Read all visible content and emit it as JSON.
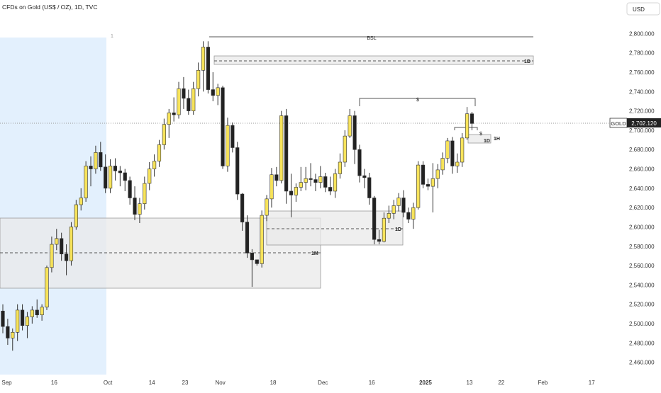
{
  "header": {
    "title": "CFDs on Gold (US$ / OZ), 1D, TVC",
    "currency_button": "USD"
  },
  "price_label": {
    "symbol": "GOLD",
    "value": "2,702.120"
  },
  "colors": {
    "bull": "#f7e35a",
    "bear": "#222222",
    "wick": "#333333",
    "grid_text": "#333333",
    "highlight": "#e3f0fd",
    "zone": "#e9e9e9"
  },
  "chart_data": {
    "type": "candlestick",
    "title": "CFDs on Gold (US$ / OZ), 1D, TVC",
    "ylim": [
      2448,
      2812
    ],
    "y_ticks": [
      "2,800.000",
      "2,780.000",
      "2,760.000",
      "2,740.000",
      "2,720.000",
      "2,700.000",
      "2,680.000",
      "2,660.000",
      "2,640.000",
      "2,620.000",
      "2,600.000",
      "2,580.000",
      "2,560.000",
      "2,540.000",
      "2,520.000",
      "2,500.000",
      "2,480.000",
      "2,460.000"
    ],
    "x_ticks": [
      {
        "label": "Sep",
        "bar": 0.8,
        "bold": false
      },
      {
        "label": "16",
        "bar": 10.5,
        "bold": false
      },
      {
        "label": "Oct",
        "bar": 21.5,
        "bold": false
      },
      {
        "label": "14",
        "bar": 30.5,
        "bold": false
      },
      {
        "label": "23",
        "bar": 37.3,
        "bold": false
      },
      {
        "label": "Nov",
        "bar": 44.5,
        "bold": false
      },
      {
        "label": "18",
        "bar": 55.3,
        "bold": false
      },
      {
        "label": "Dec",
        "bar": 65.5,
        "bold": false
      },
      {
        "label": "16",
        "bar": 75.5,
        "bold": false
      },
      {
        "label": "2025",
        "bar": 86.5,
        "bold": true
      },
      {
        "label": "13",
        "bar": 95.5,
        "bold": false
      },
      {
        "label": "22",
        "bar": 102,
        "bold": false
      },
      {
        "label": "Feb",
        "bar": 110.5,
        "bold": false
      },
      {
        "label": "17",
        "bar": 120.5,
        "bold": false
      }
    ],
    "candles": [
      [
        2513,
        2520,
        2490,
        2497
      ],
      [
        2497,
        2505,
        2478,
        2485
      ],
      [
        2485,
        2495,
        2472,
        2491
      ],
      [
        2491,
        2520,
        2482,
        2514
      ],
      [
        2514,
        2520,
        2493,
        2498
      ],
      [
        2498,
        2512,
        2485,
        2507
      ],
      [
        2507,
        2518,
        2500,
        2514
      ],
      [
        2514,
        2525,
        2506,
        2509
      ],
      [
        2509,
        2520,
        2503,
        2517
      ],
      [
        2517,
        2560,
        2514,
        2558
      ],
      [
        2558,
        2590,
        2553,
        2582
      ],
      [
        2582,
        2598,
        2576,
        2588
      ],
      [
        2588,
        2594,
        2565,
        2572
      ],
      [
        2572,
        2582,
        2550,
        2565
      ],
      [
        2565,
        2605,
        2560,
        2600
      ],
      [
        2600,
        2628,
        2597,
        2623
      ],
      [
        2623,
        2640,
        2617,
        2630
      ],
      [
        2630,
        2668,
        2626,
        2663
      ],
      [
        2663,
        2673,
        2642,
        2660
      ],
      [
        2660,
        2684,
        2655,
        2677
      ],
      [
        2677,
        2688,
        2658,
        2662
      ],
      [
        2662,
        2675,
        2635,
        2640
      ],
      [
        2640,
        2670,
        2635,
        2663
      ],
      [
        2663,
        2671,
        2648,
        2658
      ],
      [
        2658,
        2663,
        2642,
        2656
      ],
      [
        2656,
        2660,
        2637,
        2648
      ],
      [
        2648,
        2652,
        2623,
        2630
      ],
      [
        2630,
        2642,
        2607,
        2613
      ],
      [
        2613,
        2630,
        2604,
        2624
      ],
      [
        2624,
        2652,
        2618,
        2645
      ],
      [
        2645,
        2667,
        2638,
        2660
      ],
      [
        2660,
        2675,
        2652,
        2668
      ],
      [
        2668,
        2690,
        2662,
        2685
      ],
      [
        2685,
        2712,
        2680,
        2706
      ],
      [
        2706,
        2722,
        2692,
        2718
      ],
      [
        2718,
        2734,
        2709,
        2716
      ],
      [
        2716,
        2750,
        2712,
        2743
      ],
      [
        2743,
        2755,
        2722,
        2733
      ],
      [
        2733,
        2742,
        2716,
        2720
      ],
      [
        2720,
        2750,
        2716,
        2743
      ],
      [
        2743,
        2770,
        2735,
        2762
      ],
      [
        2762,
        2792,
        2740,
        2786
      ],
      [
        2786,
        2792,
        2738,
        2742
      ],
      [
        2742,
        2760,
        2730,
        2736
      ],
      [
        2736,
        2748,
        2726,
        2744
      ],
      [
        2744,
        2746,
        2660,
        2663
      ],
      [
        2663,
        2713,
        2657,
        2705
      ],
      [
        2705,
        2708,
        2677,
        2682
      ],
      [
        2682,
        2688,
        2628,
        2634
      ],
      [
        2634,
        2635,
        2596,
        2605
      ],
      [
        2605,
        2612,
        2568,
        2573
      ],
      [
        2573,
        2577,
        2538,
        2566
      ],
      [
        2566,
        2566,
        2560,
        2562
      ],
      [
        2562,
        2617,
        2558,
        2612
      ],
      [
        2612,
        2633,
        2606,
        2629
      ],
      [
        2629,
        2661,
        2620,
        2654
      ],
      [
        2654,
        2662,
        2642,
        2648
      ],
      [
        2648,
        2720,
        2645,
        2715
      ],
      [
        2715,
        2722,
        2624,
        2637
      ],
      [
        2637,
        2655,
        2610,
        2633
      ],
      [
        2633,
        2645,
        2626,
        2641
      ],
      [
        2641,
        2662,
        2637,
        2646
      ],
      [
        2646,
        2662,
        2638,
        2650
      ],
      [
        2650,
        2666,
        2642,
        2649
      ],
      [
        2649,
        2655,
        2637,
        2646
      ],
      [
        2646,
        2663,
        2640,
        2652
      ],
      [
        2652,
        2656,
        2636,
        2641
      ],
      [
        2641,
        2652,
        2633,
        2637
      ],
      [
        2637,
        2660,
        2630,
        2655
      ],
      [
        2655,
        2676,
        2650,
        2667
      ],
      [
        2667,
        2700,
        2662,
        2694
      ],
      [
        2694,
        2722,
        2692,
        2715
      ],
      [
        2715,
        2720,
        2665,
        2680
      ],
      [
        2680,
        2685,
        2646,
        2653
      ],
      [
        2653,
        2660,
        2640,
        2651
      ],
      [
        2651,
        2656,
        2623,
        2630
      ],
      [
        2630,
        2632,
        2582,
        2587
      ],
      [
        2587,
        2597,
        2582,
        2585
      ],
      [
        2585,
        2615,
        2584,
        2609
      ],
      [
        2609,
        2622,
        2604,
        2614
      ],
      [
        2614,
        2628,
        2608,
        2622
      ],
      [
        2622,
        2635,
        2616,
        2630
      ],
      [
        2630,
        2638,
        2610,
        2615
      ],
      [
        2615,
        2620,
        2604,
        2608
      ],
      [
        2608,
        2625,
        2598,
        2620
      ],
      [
        2620,
        2668,
        2618,
        2664
      ],
      [
        2664,
        2668,
        2640,
        2644
      ],
      [
        2644,
        2650,
        2638,
        2642
      ],
      [
        2642,
        2666,
        2615,
        2650
      ],
      [
        2650,
        2665,
        2640,
        2659
      ],
      [
        2659,
        2677,
        2654,
        2671
      ],
      [
        2671,
        2692,
        2666,
        2689
      ],
      [
        2689,
        2693,
        2655,
        2663
      ],
      [
        2663,
        2676,
        2656,
        2667
      ],
      [
        2667,
        2697,
        2662,
        2692
      ],
      [
        2692,
        2724,
        2690,
        2717
      ],
      [
        2717,
        2719,
        2700,
        2707
      ]
    ],
    "annotations": [
      {
        "label": "BSL",
        "type": "line"
      },
      {
        "label": "$",
        "type": "line"
      },
      {
        "label": "$",
        "type": "line"
      },
      {
        "label": "1D",
        "type": "zone"
      },
      {
        "label": "1D",
        "type": "zone"
      },
      {
        "label": "1D",
        "type": "zone"
      },
      {
        "label": "1M",
        "type": "zone"
      },
      {
        "label": "1H",
        "type": "zone"
      },
      {
        "label": "1",
        "type": "marker"
      }
    ]
  }
}
